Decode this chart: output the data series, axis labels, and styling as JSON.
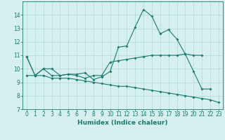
{
  "xlabel": "Humidex (Indice chaleur)",
  "bg_color": "#d6f0ef",
  "grid_color": "#b0d8d8",
  "line_color": "#1a7a6e",
  "x_values": [
    0,
    1,
    2,
    3,
    4,
    5,
    6,
    7,
    8,
    9,
    10,
    11,
    12,
    13,
    14,
    15,
    16,
    17,
    18,
    19,
    20,
    21,
    22,
    23
  ],
  "line1": [
    10.9,
    9.5,
    10.0,
    9.5,
    9.5,
    9.6,
    9.6,
    9.7,
    9.2,
    9.4,
    9.8,
    11.6,
    11.7,
    13.1,
    14.4,
    13.9,
    12.6,
    12.9,
    12.2,
    11.1,
    9.8,
    8.5,
    8.5,
    null
  ],
  "line2": [
    10.9,
    9.5,
    10.0,
    10.0,
    9.5,
    9.6,
    9.5,
    9.3,
    9.5,
    9.5,
    10.5,
    10.6,
    10.7,
    10.8,
    10.9,
    11.0,
    11.0,
    11.0,
    11.0,
    11.1,
    11.0,
    11.0,
    null,
    null
  ],
  "line3": [
    9.5,
    9.5,
    9.5,
    9.3,
    9.3,
    9.3,
    9.2,
    9.1,
    9.0,
    8.9,
    8.8,
    8.7,
    8.7,
    8.6,
    8.5,
    8.4,
    8.3,
    8.2,
    8.1,
    8.0,
    7.9,
    7.8,
    7.7,
    7.5
  ],
  "ylim": [
    7,
    15
  ],
  "yticks": [
    7,
    8,
    9,
    10,
    11,
    12,
    13,
    14
  ],
  "xlim": [
    -0.5,
    23.5
  ],
  "tick_fontsize": 5.5,
  "label_fontsize": 6.5
}
